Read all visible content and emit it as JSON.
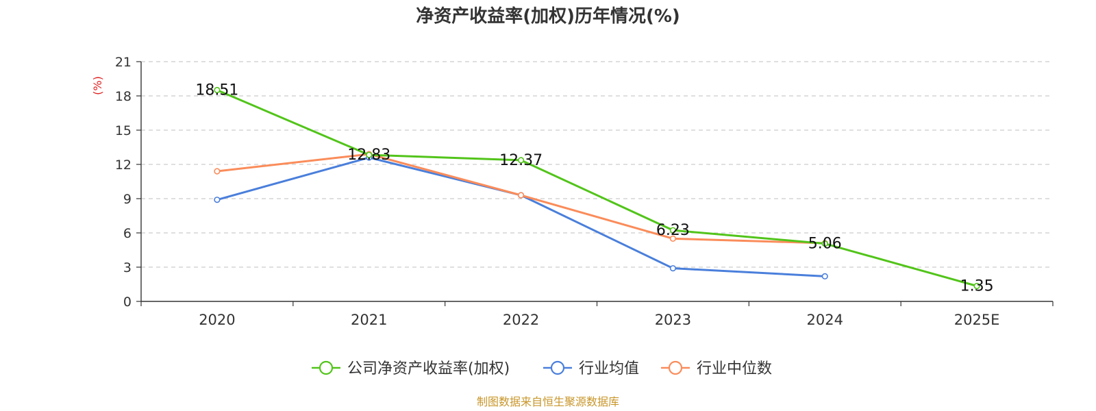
{
  "chart_data": {
    "type": "line",
    "title": "净资产收益率(加权)历年情况(%)",
    "ylabel": "(%)",
    "xlabel": "",
    "categories": [
      "2020",
      "2021",
      "2022",
      "2023",
      "2024",
      "2025E"
    ],
    "ylim": [
      0,
      21
    ],
    "yticks": [
      0,
      3,
      6,
      9,
      12,
      15,
      18,
      21
    ],
    "grid": true,
    "legend_position": "bottom-center",
    "series": [
      {
        "name": "公司净资产收益率(加权)",
        "color": "#52c41a",
        "values": [
          18.51,
          12.83,
          12.37,
          6.23,
          5.06,
          1.35
        ],
        "labels": [
          "18.51",
          "12.83",
          "12.37",
          "6.23",
          "5.06",
          "1.35"
        ]
      },
      {
        "name": "行业均值",
        "color": "#4a7fdb",
        "values": [
          8.9,
          12.6,
          9.3,
          2.9,
          2.2,
          null
        ]
      },
      {
        "name": "行业中位数",
        "color": "#fa8c5a",
        "values": [
          11.4,
          12.9,
          9.3,
          5.5,
          5.1,
          null
        ]
      }
    ],
    "source": "制图数据来自恒生聚源数据库",
    "colors": {
      "unit": "#e02020",
      "source": "#c8962a",
      "axis": "#333333",
      "grid": "#cccccc"
    }
  }
}
